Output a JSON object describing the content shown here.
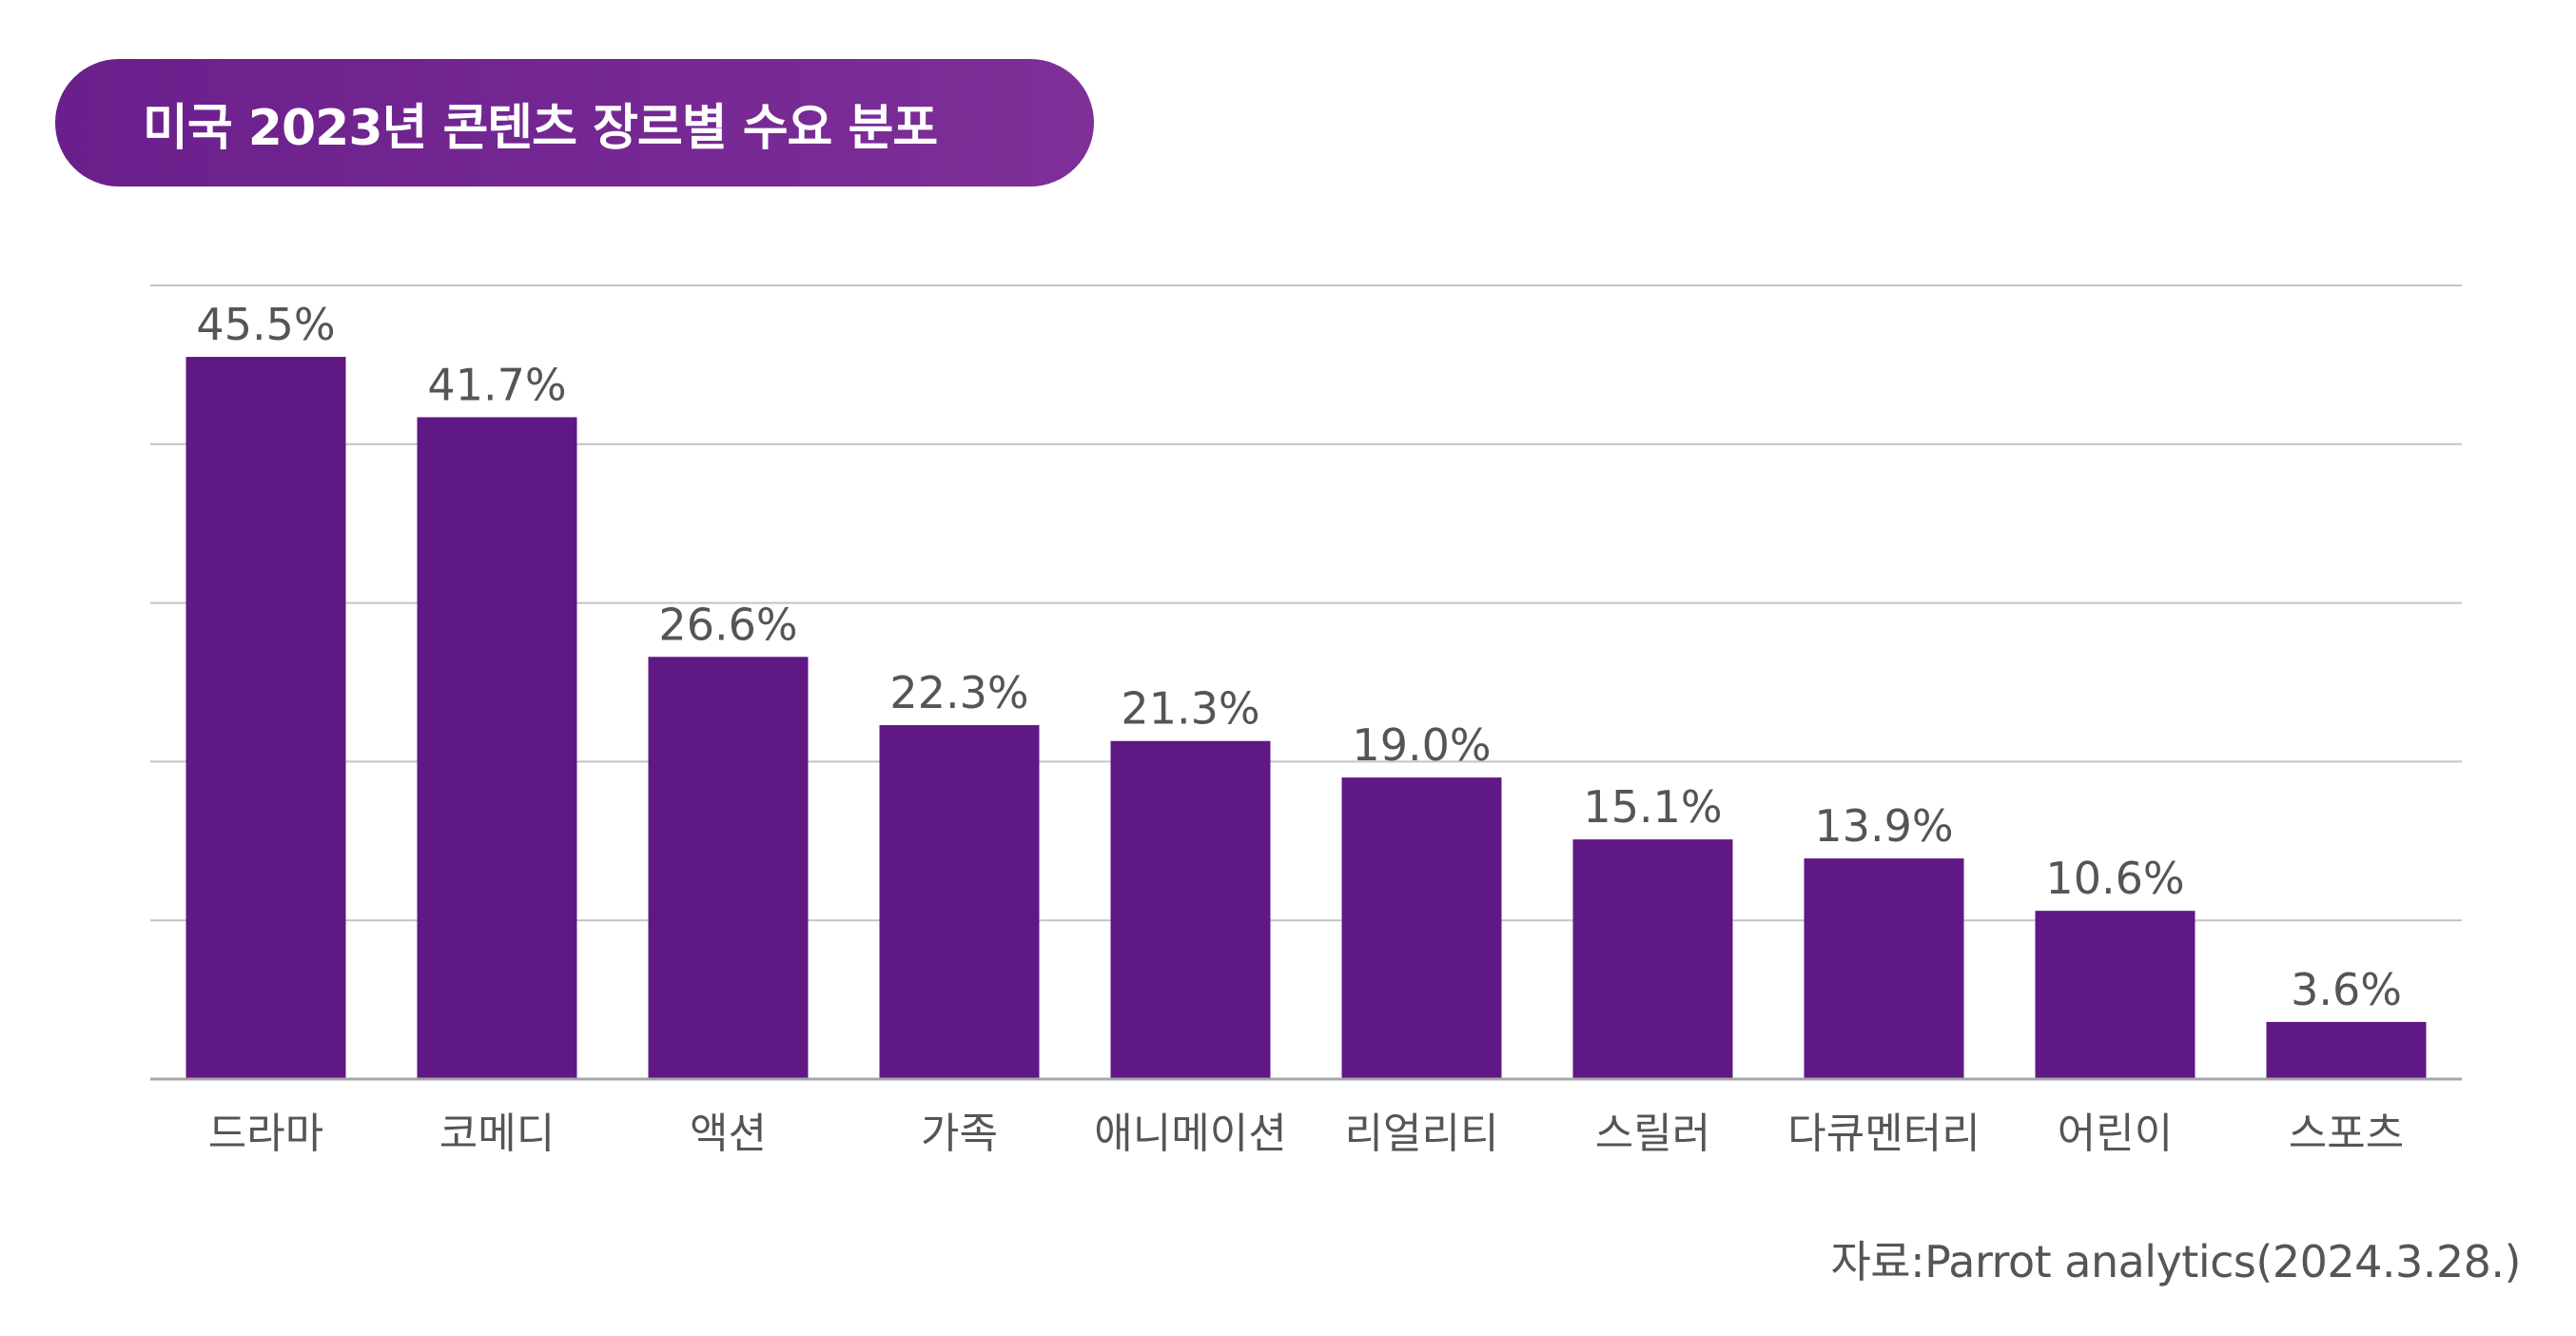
{
  "title": "미국 2023년 콘텐츠 장르별 수요 분포",
  "source": "자료:Parrot analytics(2024.3.28.)",
  "colors": {
    "bar": "#5f1884",
    "title_background": "#722594",
    "gridline": "#c4c4c4",
    "baseline": "#a6a6a6",
    "label_text": "#555555"
  },
  "chart_data": {
    "type": "bar",
    "categories": [
      "드라마",
      "코메디",
      "액션",
      "가족",
      "애니메이션",
      "리얼리티",
      "스릴러",
      "다큐멘터리",
      "어린이",
      "스포츠"
    ],
    "values": [
      45.5,
      41.7,
      26.6,
      22.3,
      21.3,
      19.0,
      15.1,
      13.9,
      10.6,
      3.6
    ],
    "data_labels": [
      "45.5%",
      "41.7%",
      "26.6%",
      "22.3%",
      "21.3%",
      "19.0%",
      "15.1%",
      "13.9%",
      "10.6%",
      "3.6%"
    ],
    "unit": "%",
    "ylim": [
      0,
      50
    ],
    "gridlines": true,
    "legend": false,
    "title": "미국 2023년 콘텐츠 장르별 수요 분포",
    "xlabel": "",
    "ylabel": ""
  }
}
